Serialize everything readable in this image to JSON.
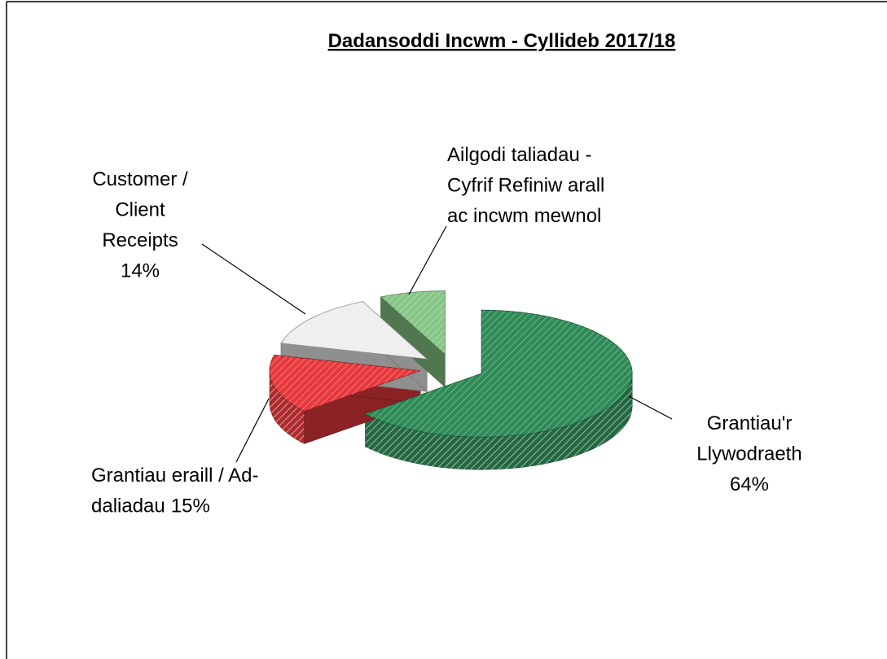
{
  "chart_data": {
    "type": "pie3d",
    "title": "Dadansoddi Incwm - Cyllideb 2017/18",
    "categories": [
      "Grantiau'r Llywodraeth",
      "Grantiau eraill / Ad-daliadau",
      "Customer / Client Receipts",
      "Ailgodi taliadau - Cyfrif Refiniw arall ac incwm mewnol"
    ],
    "values": [
      64,
      15,
      14,
      7
    ],
    "value_labels": [
      "64%",
      "15%",
      "14%",
      null
    ],
    "colors": [
      "#2e8b57",
      "#e8383c",
      "#eeeeee",
      "#86c686"
    ]
  }
}
